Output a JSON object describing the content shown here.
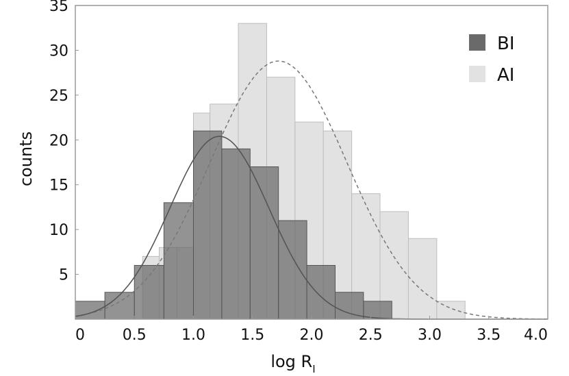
{
  "chart_data": {
    "type": "bar",
    "xlabel": "log R",
    "xlabel_sub": "I",
    "ylabel": "counts",
    "xlim": [
      0,
      4.0
    ],
    "ylim": [
      0,
      35
    ],
    "grid": false,
    "legend_placement": "top-right",
    "x_tick_labels": [
      "0",
      "0.5",
      "1.0",
      "1.5",
      "2.0",
      "2.5",
      "3.0",
      "3.5",
      "4.0"
    ],
    "x_ticks": [
      0,
      0.5,
      1.0,
      1.5,
      2.0,
      2.5,
      3.0,
      3.5,
      4.0
    ],
    "y_tick_labels": [
      "5",
      "10",
      "15",
      "20",
      "25",
      "30",
      "35"
    ],
    "y_ticks": [
      5,
      10,
      15,
      20,
      25,
      30,
      35
    ],
    "series": [
      {
        "name": "AI",
        "color": "#e2e2e2",
        "bin_edges": [
          0.57,
          0.71,
          0.86,
          1.0,
          1.14,
          1.38,
          1.62,
          1.86,
          2.1,
          2.34,
          2.58,
          2.82,
          3.06,
          3.3,
          3.45
        ],
        "counts": [
          7,
          8,
          8,
          23,
          24,
          33,
          27,
          22,
          21,
          14,
          12,
          9,
          2,
          0
        ],
        "fit": {
          "type": "gaussian",
          "style": "dashed",
          "mean": 1.72,
          "peak": 28.8,
          "sigma": 0.58
        }
      },
      {
        "name": "BI",
        "color": "#6a6a6a",
        "bin_edges": [
          0.0,
          0.25,
          0.5,
          0.75,
          1.0,
          1.24,
          1.48,
          1.72,
          1.96,
          2.2,
          2.44,
          2.68,
          2.92
        ],
        "counts": [
          2,
          3,
          6,
          13,
          21,
          19,
          17,
          11,
          6,
          3,
          2,
          0
        ],
        "fit": {
          "type": "gaussian",
          "style": "solid",
          "mean": 1.22,
          "peak": 20.4,
          "sigma": 0.42
        }
      }
    ]
  }
}
